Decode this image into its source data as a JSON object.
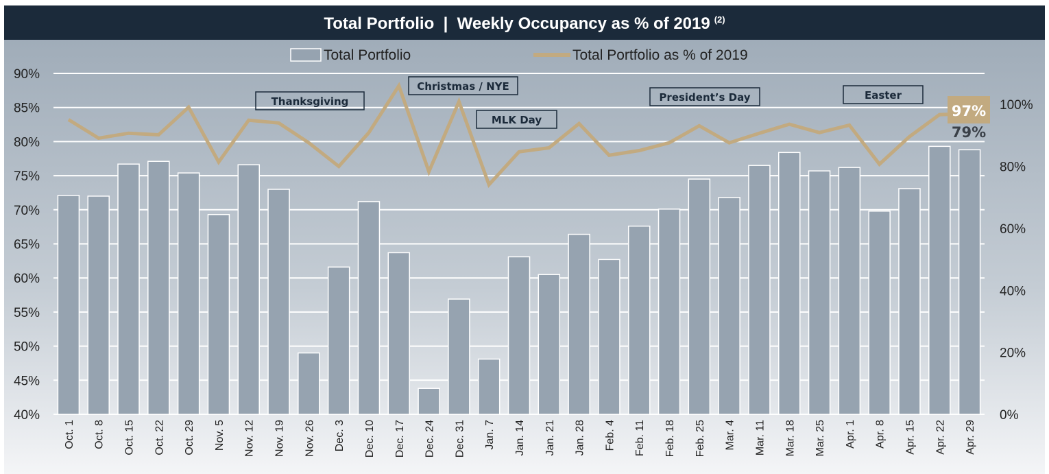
{
  "chart_data": {
    "type": "bar+line",
    "title": "Total Portfolio  |  Weekly Occupancy as % of 2019",
    "title_footnote": "(2)",
    "legend_position": "top",
    "grid": true,
    "categories": [
      "Oct. 1",
      "Oct. 8",
      "Oct. 15",
      "Oct. 22",
      "Oct. 29",
      "Nov. 5",
      "Nov. 12",
      "Nov. 19",
      "Nov. 26",
      "Dec. 3",
      "Dec. 10",
      "Dec. 17",
      "Dec. 24",
      "Dec. 31",
      "Jan. 7",
      "Jan. 14",
      "Jan. 21",
      "Jan. 28",
      "Feb. 4",
      "Feb. 11",
      "Feb. 18",
      "Feb. 25",
      "Mar. 4",
      "Mar. 11",
      "Mar. 18",
      "Mar. 25",
      "Apr. 1",
      "Apr. 8",
      "Apr. 15",
      "Apr. 22",
      "Apr. 29"
    ],
    "series": [
      {
        "name": "Total Portfolio",
        "type": "bar",
        "axis": "left",
        "color": "#96a3b0",
        "values": [
          72.1,
          72.0,
          76.7,
          77.1,
          75.4,
          69.3,
          76.6,
          73.0,
          49.0,
          61.6,
          71.2,
          63.7,
          43.8,
          56.9,
          48.1,
          63.1,
          60.5,
          66.4,
          62.7,
          67.6,
          70.1,
          74.5,
          71.8,
          76.5,
          78.4,
          75.7,
          76.2,
          69.8,
          73.1,
          79.3,
          78.8
        ]
      },
      {
        "name": "Total Portfolio as % of 2019",
        "type": "line",
        "axis": "right",
        "color": "#c2aa80",
        "values": [
          95.1,
          89.1,
          90.7,
          90.2,
          99.1,
          81.4,
          94.9,
          94.0,
          87.6,
          80.0,
          90.9,
          106.0,
          78.3,
          100.9,
          74.1,
          84.7,
          86.0,
          93.8,
          83.6,
          85.1,
          87.6,
          93.1,
          87.6,
          90.7,
          93.6,
          90.9,
          93.3,
          80.7,
          89.6,
          96.7,
          97.0
        ]
      }
    ],
    "left_axis": {
      "ylim": [
        40,
        90
      ],
      "ticks": [
        "40%",
        "45%",
        "50%",
        "55%",
        "60%",
        "65%",
        "70%",
        "75%",
        "80%",
        "85%",
        "90%"
      ]
    },
    "right_axis": {
      "ylim": [
        0,
        110
      ],
      "ticks": [
        "0%",
        "20%",
        "40%",
        "60%",
        "80%",
        "100%"
      ]
    },
    "end_labels": {
      "line": "97%",
      "bar": "79%"
    },
    "annotations": [
      "Thanksgiving",
      "Christmas / NYE",
      "MLK Day",
      "President’s Day",
      "Easter"
    ]
  }
}
